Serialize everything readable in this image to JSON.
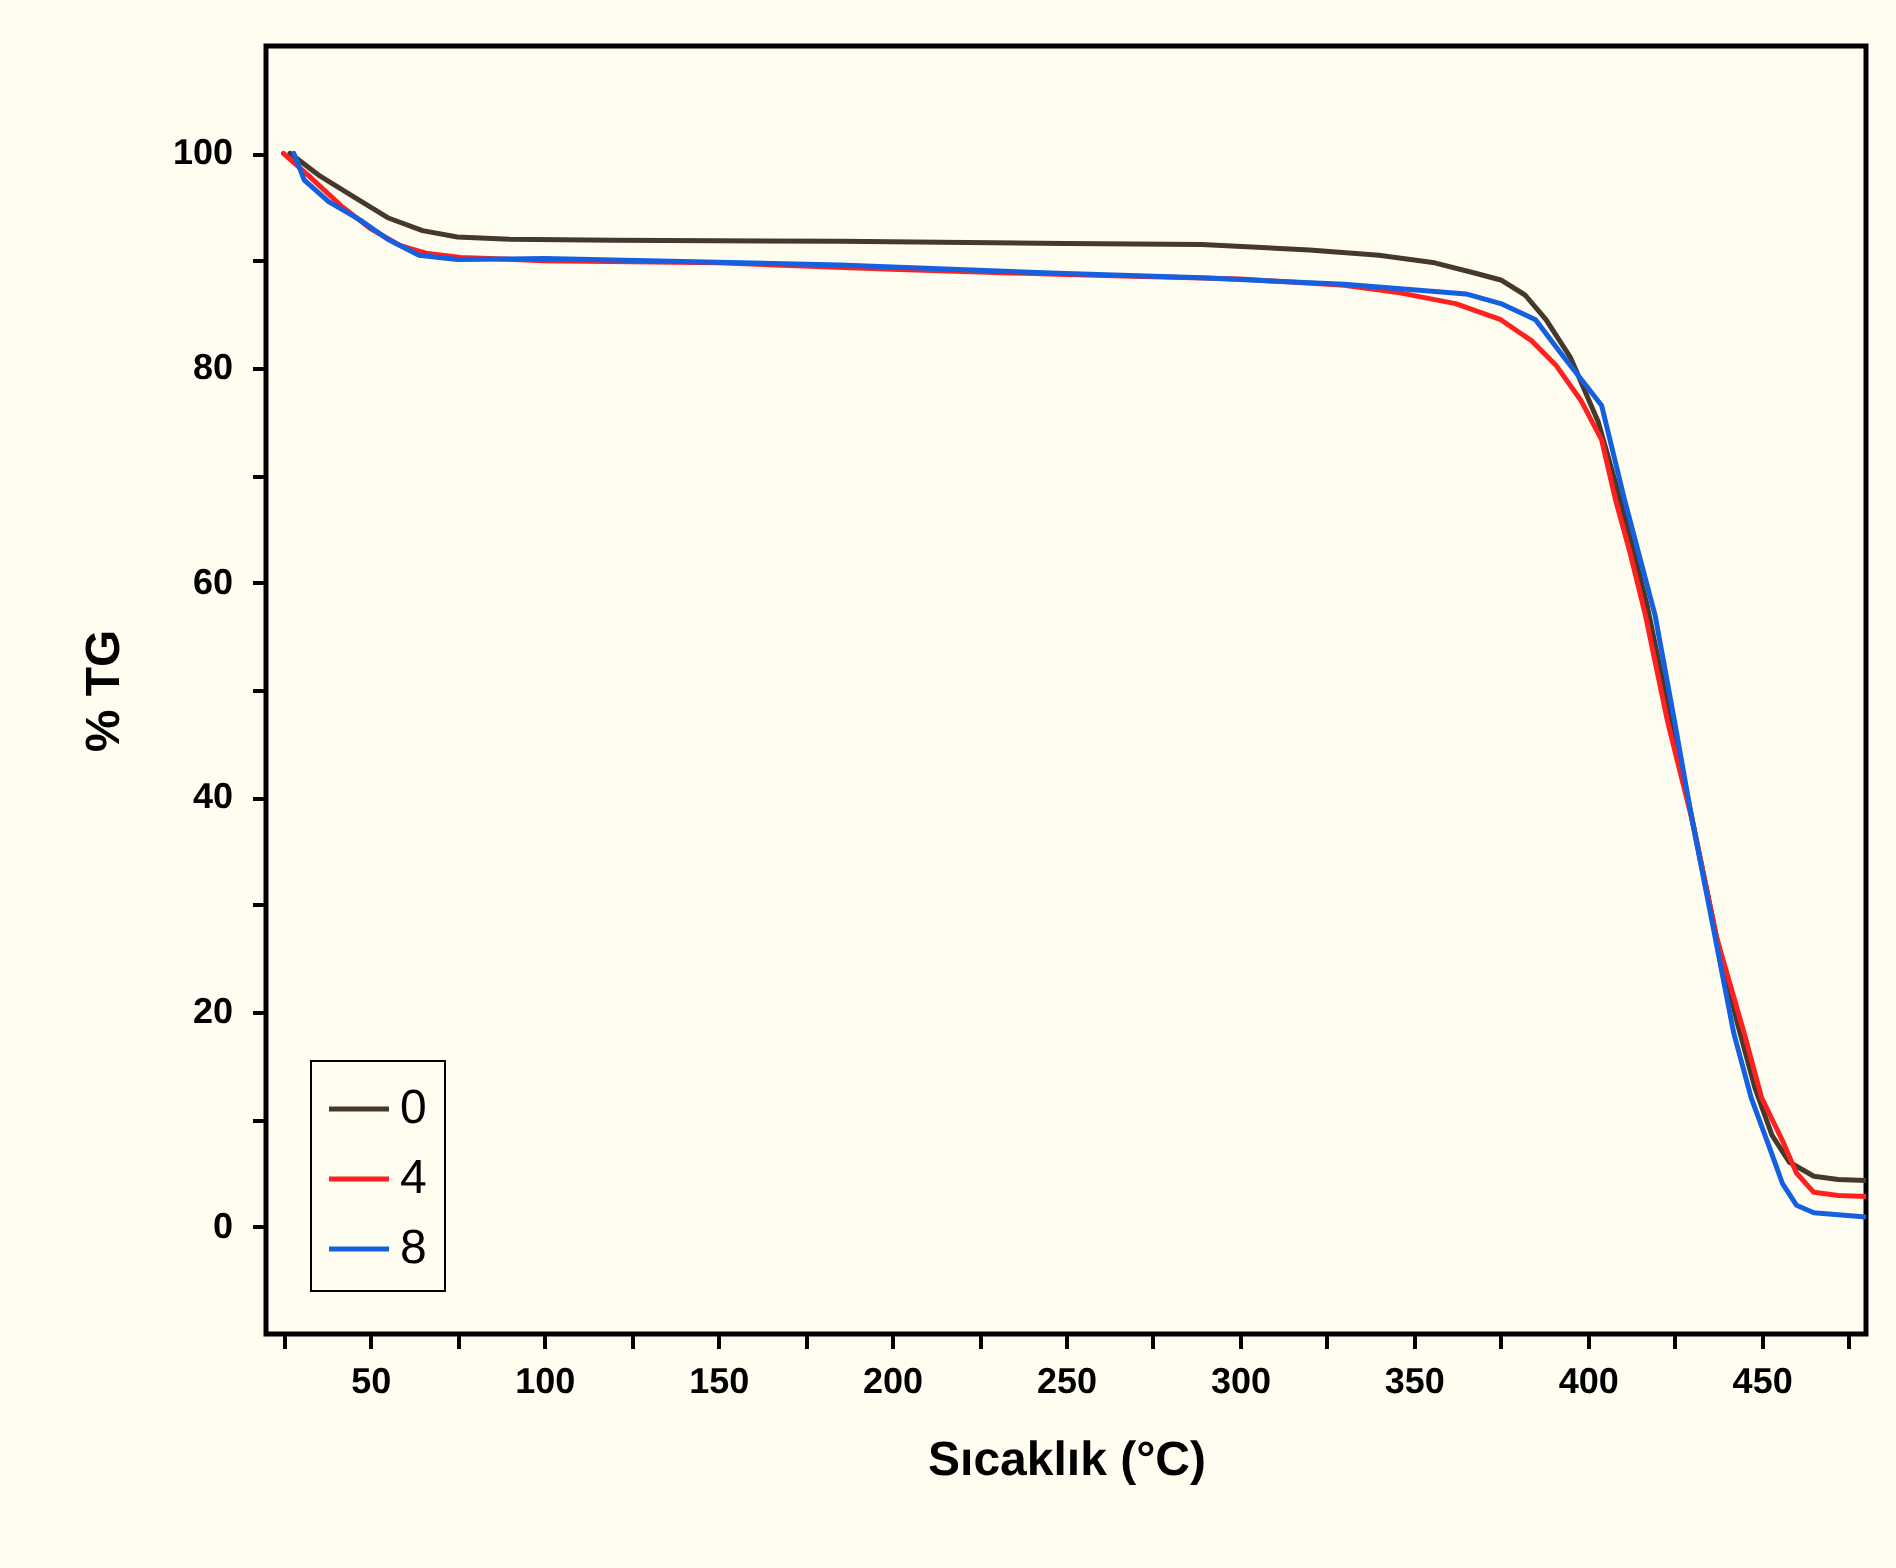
{
  "chart_data": {
    "type": "line",
    "xlabel": "Sıcaklık (°C)",
    "ylabel": "% TG",
    "xlim": [
      20,
      480
    ],
    "ylim": [
      -10,
      110
    ],
    "xticks": [
      {
        "value": 25,
        "label": null
      },
      50,
      {
        "value": 75,
        "label": null
      },
      100,
      {
        "value": 125,
        "label": null
      },
      150,
      {
        "value": 175,
        "label": null
      },
      200,
      {
        "value": 225,
        "label": null
      },
      250,
      {
        "value": 275,
        "label": null
      },
      300,
      {
        "value": 325,
        "label": null
      },
      350,
      {
        "value": 375,
        "label": null
      },
      400,
      {
        "value": 425,
        "label": null
      },
      450,
      {
        "value": 475,
        "label": null
      }
    ],
    "yticks": [
      0,
      {
        "value": 10,
        "label": null
      },
      20,
      {
        "value": 30,
        "label": null
      },
      40,
      {
        "value": 50,
        "label": null
      },
      60,
      {
        "value": 70,
        "label": null
      },
      80,
      {
        "value": 90,
        "label": null
      },
      100
    ],
    "grid": false,
    "legend": "bottom left",
    "marker": "none",
    "line_style": "solid",
    "series": [
      {
        "name": "0",
        "color": "#46382b",
        "x": [
          26.9,
          35,
          45,
          55,
          65,
          75,
          90,
          120,
          185,
          250,
          289,
          320,
          340,
          356,
          368,
          375,
          382,
          388,
          395,
          403,
          410,
          417,
          424,
          430,
          437,
          443,
          448,
          453,
          458,
          465,
          472,
          480
        ],
        "values": [
          100,
          98,
          96,
          94,
          92.8,
          92.2,
          92,
          91.9,
          91.8,
          91.6,
          91.5,
          91,
          90.5,
          89.8,
          88.8,
          88.2,
          86.8,
          84.5,
          81,
          75,
          67,
          58,
          47,
          38,
          27,
          19,
          13,
          8.5,
          6,
          4.7,
          4.4,
          4.3
        ]
      },
      {
        "name": "4",
        "color": "#ff2020",
        "x": [
          25,
          32,
          42,
          50,
          58.6,
          66,
          76,
          100,
          150,
          200,
          250,
          300,
          330,
          346,
          362,
          375,
          384,
          391,
          398,
          404,
          408,
          412,
          416.5,
          423,
          430,
          437,
          445,
          450,
          456,
          460,
          465,
          472,
          480
        ],
        "values": [
          100,
          98,
          95,
          93,
          91.4,
          90.7,
          90.3,
          90,
          89.8,
          89.2,
          88.7,
          88.3,
          87.7,
          87,
          86,
          84.5,
          82.5,
          80.2,
          77,
          73.3,
          67.7,
          63,
          57.1,
          47,
          37.9,
          27,
          18,
          12,
          8,
          5,
          3.2,
          2.9,
          2.8
        ]
      },
      {
        "name": "8",
        "color": "#1560e0",
        "x": [
          28,
          31,
          38,
          47,
          55,
          64,
          75,
          100,
          185,
          250,
          289,
          330,
          365,
          375,
          385,
          392,
          398,
          404,
          410.6,
          419.4,
          425,
          430,
          436,
          442,
          447,
          452,
          456,
          460,
          465,
          472,
          480
        ],
        "values": [
          100,
          97.5,
          95.5,
          93.8,
          92,
          90.5,
          90.1,
          90.2,
          89.6,
          88.8,
          88.4,
          87.8,
          86.9,
          86,
          84.5,
          81.5,
          79,
          76.5,
          67.7,
          56.9,
          47,
          37.9,
          28,
          18,
          12,
          7.6,
          4,
          2,
          1.3,
          1.1,
          0.9
        ]
      }
    ]
  }
}
